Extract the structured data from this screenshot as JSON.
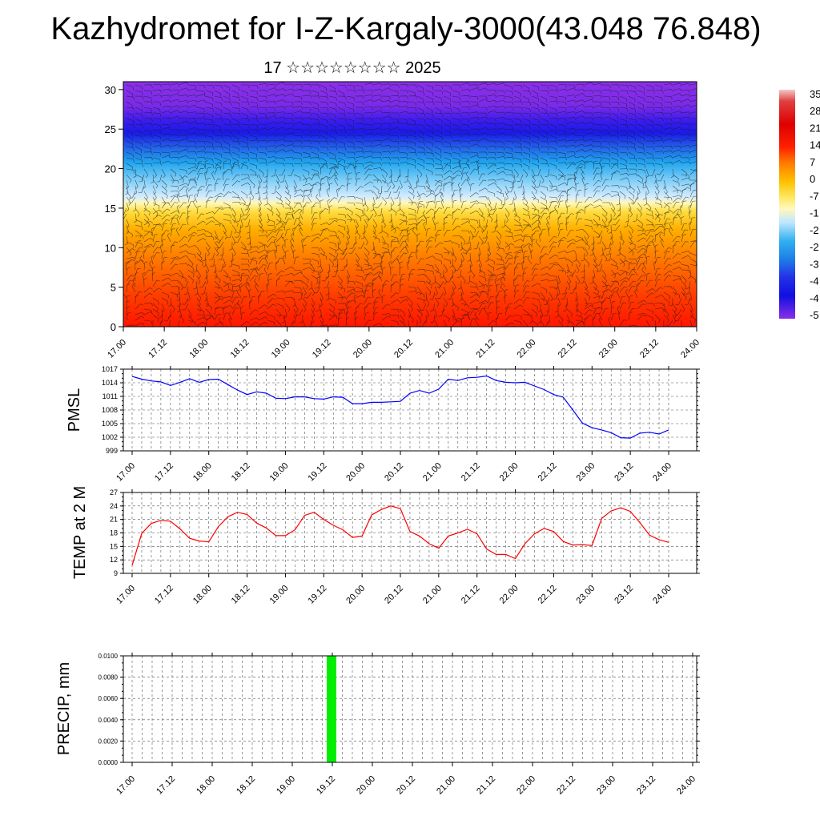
{
  "page": {
    "title": "Kazhydromet for I-Z-Kargaly-3000(43.048 76.848)",
    "subtitle": "17 ☆☆☆☆☆☆☆☆ 2025"
  },
  "time_labels": [
    "17.00",
    "17.12",
    "18.00",
    "18.12",
    "19.00",
    "19.12",
    "20.00",
    "20.12",
    "21.00",
    "21.12",
    "22.00",
    "22.12",
    "23.00",
    "23.12",
    "24.00"
  ],
  "colors": {
    "pmsl_line": "#0000ff",
    "temp_line": "#ff0000",
    "precip_bar": "#00ee00"
  },
  "chart_data": [
    {
      "type": "heatmap",
      "title": "",
      "yticks": [
        "0",
        "5",
        "10",
        "15",
        "20",
        "25",
        "30"
      ],
      "ylim": [
        0,
        31
      ],
      "colorbar_labels": [
        "35",
        "28",
        "21",
        "14",
        "7",
        "0",
        "-7",
        "-1",
        "-2",
        "-2",
        "-3",
        "-4",
        "-4",
        "-5"
      ],
      "notes": "temperature shading with wind barbs"
    },
    {
      "type": "line",
      "ylabel": "PMSL",
      "yticks": [
        "1017",
        "1014",
        "1011",
        "1008",
        "1005",
        "1002",
        "999"
      ],
      "ylim": [
        999,
        1017
      ],
      "x": [
        "17.00",
        "17.03",
        "17.06",
        "17.09",
        "17.12",
        "17.15",
        "17.18",
        "17.21",
        "18.00",
        "18.03",
        "18.06",
        "18.09",
        "18.12",
        "18.15",
        "18.18",
        "18.21",
        "19.00",
        "19.03",
        "19.06",
        "19.09",
        "19.12",
        "19.15",
        "19.18",
        "19.21",
        "20.00",
        "20.03",
        "20.06",
        "20.09",
        "20.12",
        "20.15",
        "20.18",
        "20.21",
        "21.00",
        "21.03",
        "21.06",
        "21.09",
        "21.12",
        "21.15",
        "21.18",
        "21.21",
        "22.00",
        "22.03",
        "22.06",
        "22.09",
        "22.12",
        "22.15",
        "22.18",
        "22.21",
        "23.00",
        "23.03",
        "23.06",
        "23.09",
        "23.12",
        "23.15",
        "23.18",
        "23.21",
        "24.00"
      ],
      "values": [
        1015.4,
        1014.8,
        1014.4,
        1014.2,
        1013.4,
        1014.1,
        1014.9,
        1014.1,
        1014.7,
        1014.8,
        1013.6,
        1012.4,
        1011.4,
        1012.0,
        1011.7,
        1010.6,
        1010.5,
        1010.9,
        1010.9,
        1010.5,
        1010.4,
        1010.9,
        1010.8,
        1009.4,
        1009.4,
        1009.7,
        1009.7,
        1009.8,
        1009.9,
        1011.7,
        1012.3,
        1011.7,
        1012.6,
        1014.8,
        1014.5,
        1015.1,
        1015.2,
        1015.5,
        1014.5,
        1014.1,
        1014.0,
        1014.1,
        1013.3,
        1012.5,
        1011.4,
        1010.8,
        1008.0,
        1005.1,
        1004.1,
        1003.6,
        1003.0,
        1001.9,
        1001.8,
        1002.9,
        1003.1,
        1002.7,
        1003.6
      ],
      "series_color": "#0000ff"
    },
    {
      "type": "line",
      "ylabel": "TEMP at 2 M",
      "yticks": [
        "27",
        "24",
        "21",
        "18",
        "15",
        "12",
        "9"
      ],
      "ylim": [
        9,
        27
      ],
      "x": [
        "17.00",
        "17.03",
        "17.06",
        "17.09",
        "17.12",
        "17.15",
        "17.18",
        "17.21",
        "18.00",
        "18.03",
        "18.06",
        "18.09",
        "18.12",
        "18.15",
        "18.18",
        "18.21",
        "19.00",
        "19.03",
        "19.06",
        "19.09",
        "19.12",
        "19.15",
        "19.18",
        "19.21",
        "20.00",
        "20.03",
        "20.06",
        "20.09",
        "20.12",
        "20.15",
        "20.18",
        "20.21",
        "21.00",
        "21.03",
        "21.06",
        "21.09",
        "21.12",
        "21.15",
        "21.18",
        "21.21",
        "22.00",
        "22.03",
        "22.06",
        "22.09",
        "22.12",
        "22.15",
        "22.18",
        "22.21",
        "23.00",
        "23.03",
        "23.06",
        "23.09",
        "23.12",
        "23.15",
        "23.18",
        "23.21",
        "24.00"
      ],
      "values": [
        10.8,
        17.9,
        20.1,
        20.8,
        20.6,
        18.9,
        16.8,
        16.2,
        16.0,
        19.4,
        21.6,
        22.6,
        22.1,
        20.2,
        19.1,
        17.4,
        17.4,
        18.7,
        21.9,
        22.6,
        21.0,
        19.7,
        18.7,
        17.0,
        17.3,
        22.0,
        23.2,
        24.0,
        23.4,
        18.3,
        17.3,
        15.6,
        14.6,
        17.3,
        18.0,
        18.8,
        17.8,
        14.4,
        13.2,
        13.2,
        12.3,
        15.6,
        17.8,
        19.0,
        18.3,
        16.1,
        15.3,
        15.4,
        15.2,
        21.2,
        22.9,
        23.6,
        22.8,
        20.3,
        17.5,
        16.5,
        15.9
      ],
      "series_color": "#ff0000"
    },
    {
      "type": "bar",
      "ylabel": "PRECIP, mm",
      "yticks": [
        "0.0100",
        "0.0080",
        "0.0060",
        "0.0040",
        "0.0020",
        "0.0000"
      ],
      "ylim": [
        0,
        0.01
      ],
      "categories": [
        "19.12"
      ],
      "values": [
        0.01
      ],
      "series_color": "#00ee00"
    }
  ]
}
